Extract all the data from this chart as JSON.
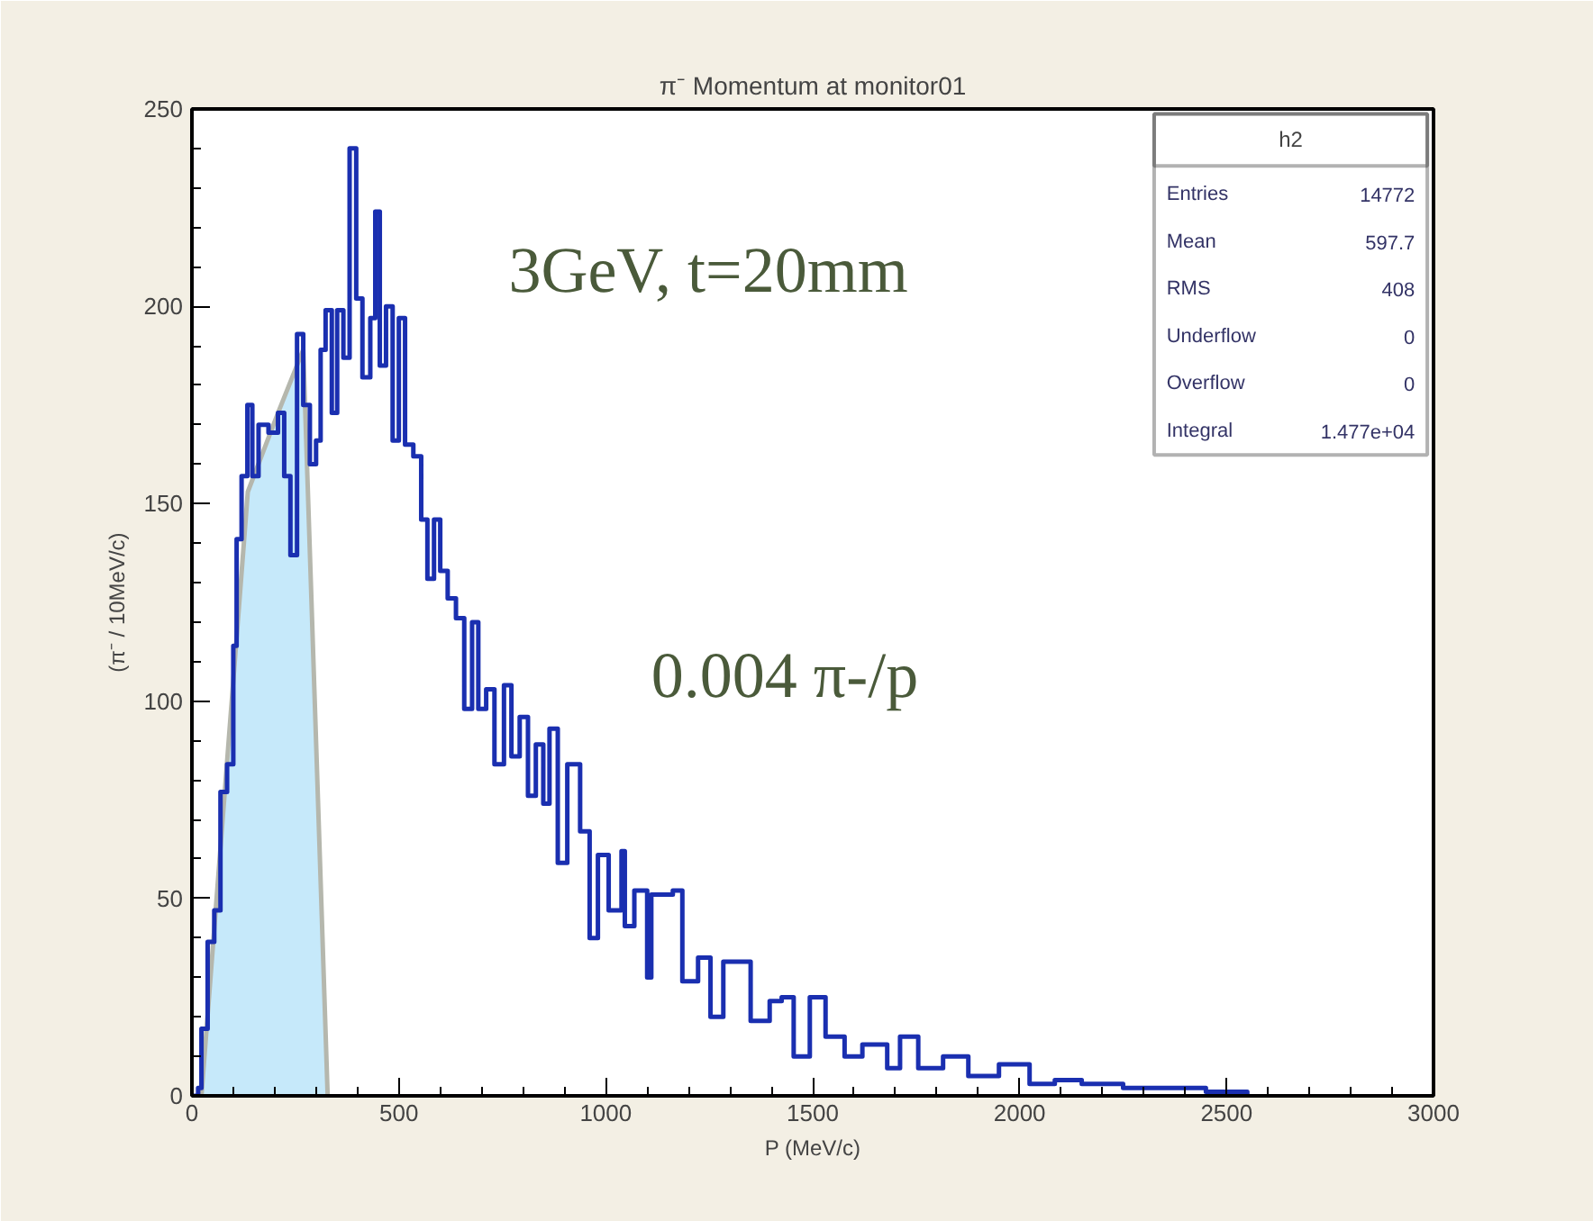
{
  "chart_data": {
    "type": "step",
    "title": "π⁻ Momentum at monitor01",
    "xlabel": "P (MeV/c)",
    "ylabel": "(π⁻ / 10MeV/c)",
    "xlim": [
      0,
      3000
    ],
    "xticks": [
      0,
      500,
      1000,
      1500,
      2000,
      2500,
      3000
    ],
    "ylim": [
      0,
      250
    ],
    "yticks": [
      0,
      50,
      100,
      150,
      200,
      250
    ],
    "grid": false,
    "series": [
      {
        "color": "#1a2fb0",
        "x": [
          0,
          15,
          23,
          38,
          54,
          69,
          85,
          100,
          108,
          120,
          134,
          146,
          161,
          185,
          208,
          223,
          238,
          254,
          269,
          285,
          300,
          311,
          323,
          338,
          351,
          366,
          381,
          397,
          412,
          431,
          443,
          454,
          469,
          485,
          500,
          515,
          535,
          554,
          569,
          585,
          600,
          618,
          638,
          658,
          677,
          692,
          711,
          731,
          754,
          772,
          792,
          812,
          831,
          849,
          864,
          884,
          907,
          938,
          961,
          981,
          1007,
          1038,
          1046,
          1069,
          1100,
          1110,
          1162,
          1185,
          1223,
          1253,
          1284,
          1320,
          1350,
          1396,
          1425,
          1454,
          1493,
          1531,
          1577,
          1620,
          1680,
          1711,
          1755,
          1815,
          1876,
          1950,
          2024,
          2085,
          2150,
          2250,
          2350,
          2450,
          2550
        ],
        "values": [
          0,
          2,
          17,
          39,
          47,
          77,
          84,
          114,
          141,
          157,
          175,
          157,
          170,
          168,
          173,
          157,
          137,
          193,
          175,
          160,
          166,
          189,
          199,
          173,
          199,
          187,
          240,
          202,
          182,
          197,
          224,
          185,
          200,
          166,
          197,
          165,
          162,
          146,
          131,
          146,
          133,
          126,
          121,
          98,
          120,
          98,
          103,
          84,
          104,
          86,
          96,
          76,
          89,
          74,
          93,
          59,
          84,
          67,
          40,
          61,
          47,
          62,
          43,
          52,
          30,
          51,
          52,
          29,
          35,
          20,
          34,
          34,
          19,
          24,
          25,
          10,
          25,
          15,
          10,
          13,
          7,
          15,
          7,
          10,
          5,
          8,
          3,
          4,
          3,
          2,
          2,
          1,
          0
        ]
      },
      {
        "type": "area",
        "color": "#c6e9fa",
        "x": [
          23,
          135,
          208,
          269,
          328
        ],
        "values": [
          0,
          153,
          173,
          189,
          0
        ]
      }
    ],
    "annotations": [
      "3GeV, t=20mm",
      "0.004 π-/p",
      "h2",
      "Entries",
      "14772",
      "Mean",
      "597.7",
      "RMS",
      "408",
      "Underflow",
      "0",
      "Overflow",
      "0",
      "Integral",
      "1.477e+04"
    ]
  }
}
